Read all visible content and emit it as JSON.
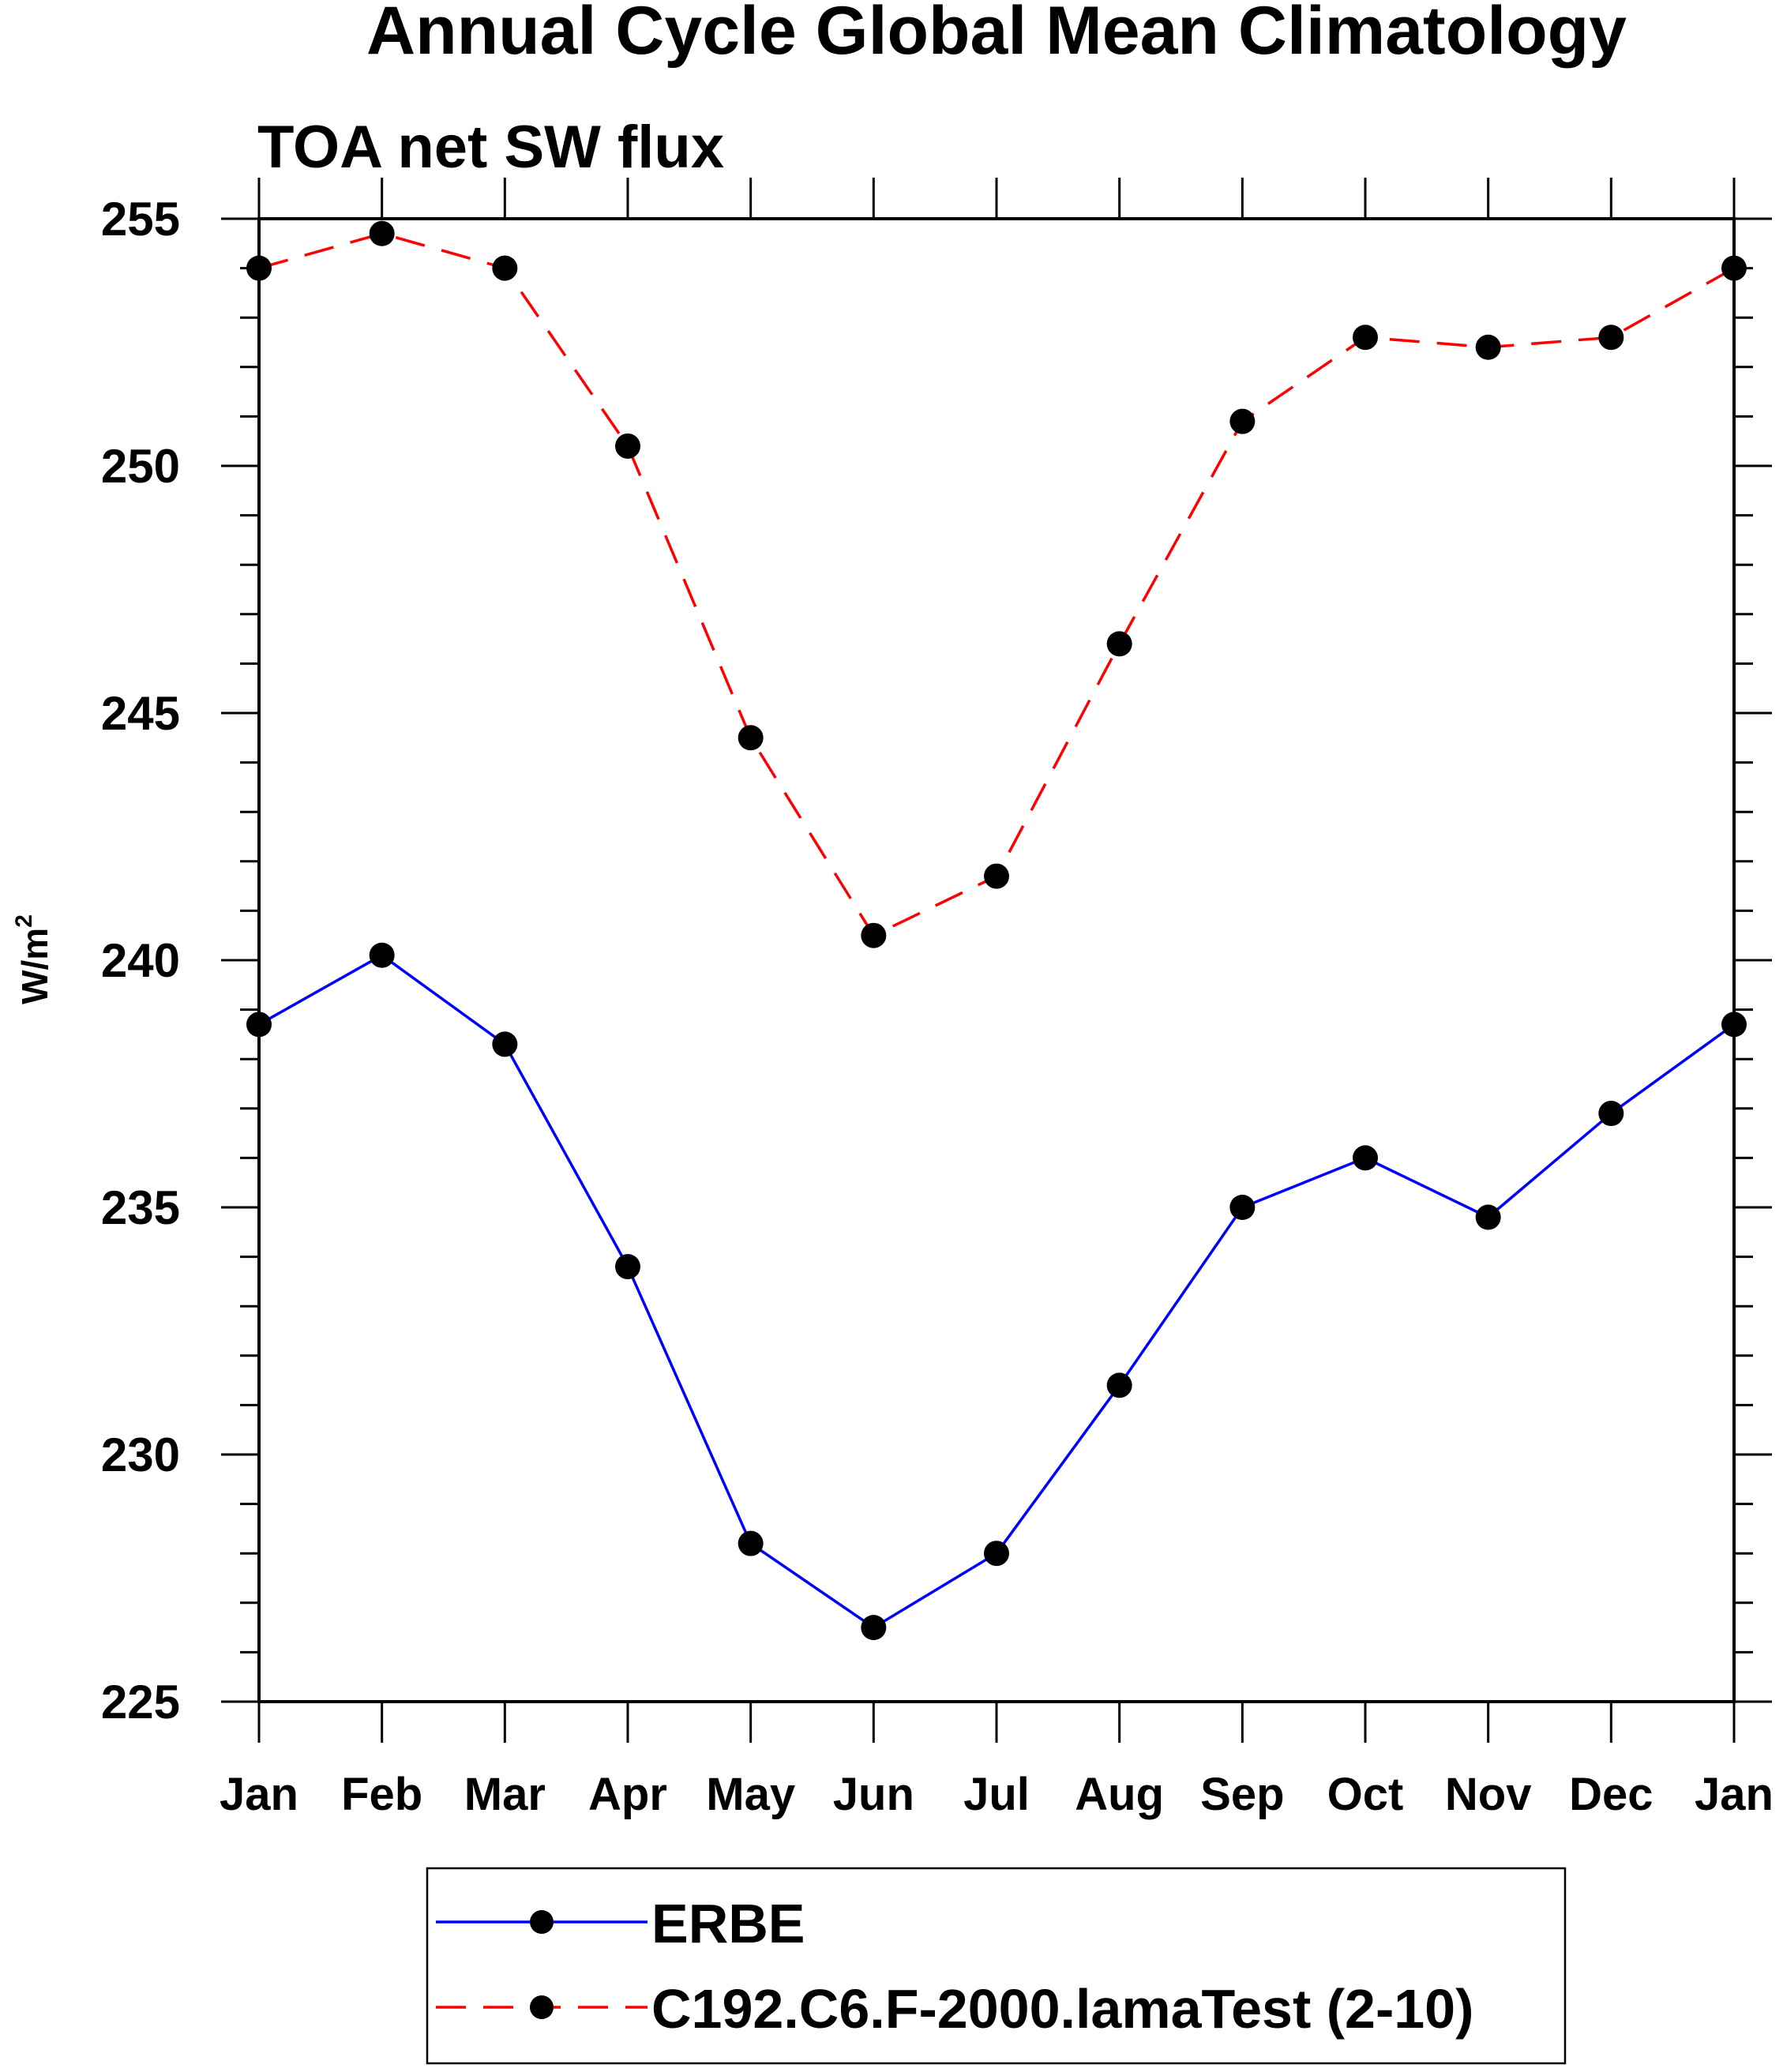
{
  "chart_data": {
    "type": "line",
    "title": "Annual Cycle Global Mean Climatology",
    "subtitle": "TOA net SW flux",
    "xlabel": "",
    "ylabel": "W/m",
    "ylabel_superscript": "2",
    "categories": [
      "Jan",
      "Feb",
      "Mar",
      "Apr",
      "May",
      "Jun",
      "Jul",
      "Aug",
      "Sep",
      "Oct",
      "Nov",
      "Dec",
      "Jan"
    ],
    "ylim": [
      225,
      255
    ],
    "yticks": [
      225,
      230,
      235,
      240,
      245,
      250,
      255
    ],
    "yminor_step": 1,
    "grid": false,
    "legend_position": "bottom-center",
    "series": [
      {
        "name": "ERBE",
        "color": "#0000ff",
        "dash": "solid",
        "marker": "filled-circle",
        "values": [
          238.7,
          240.1,
          238.3,
          233.8,
          228.2,
          226.5,
          228.0,
          231.4,
          235.0,
          236.0,
          234.8,
          236.9,
          238.7
        ]
      },
      {
        "name": "C192.C6.F-2000.lamaTest (2-10)",
        "color": "#ff0000",
        "dash": "dashed",
        "marker": "filled-circle",
        "values": [
          254.0,
          254.7,
          254.0,
          250.4,
          244.5,
          240.5,
          241.7,
          246.4,
          250.9,
          252.6,
          252.4,
          252.6,
          254.0
        ]
      }
    ]
  }
}
